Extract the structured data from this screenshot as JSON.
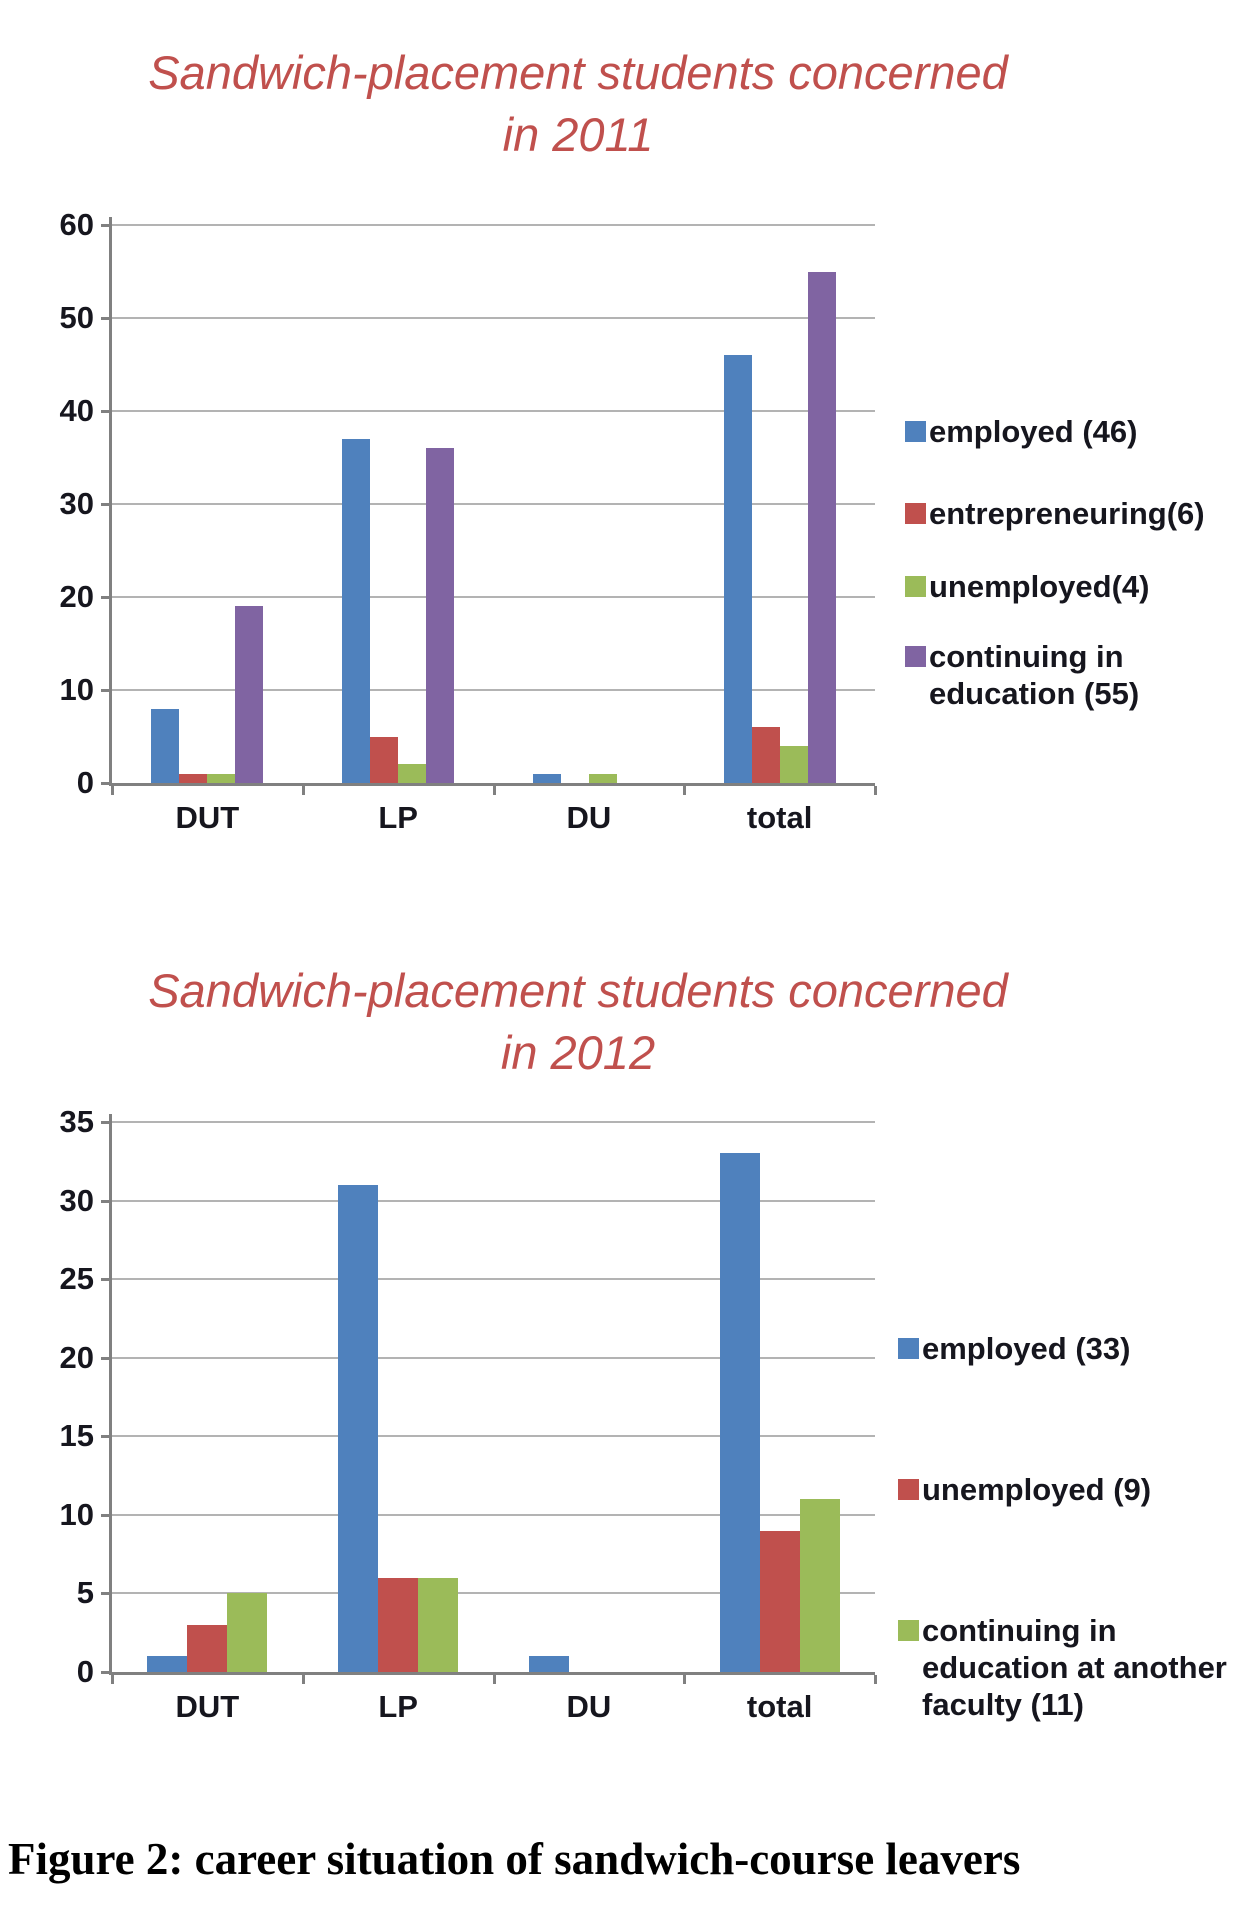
{
  "style": {
    "background": "#FFFFFF",
    "title_color": "#C0504D",
    "text_color": "#16161E",
    "axis_color": "#808080",
    "gridline_color": "#B3B3B3"
  },
  "chart_data": [
    {
      "type": "bar",
      "title": "Sandwich-placement students concerned in 2011",
      "title_lines": [
        "Sandwich-placement students concerned",
        "in 2011"
      ],
      "categories": [
        "DUT",
        "LP",
        "DU",
        "total"
      ],
      "series": [
        {
          "name": "employed (46)",
          "color": "#4F81BD",
          "values": [
            8,
            37,
            1,
            46
          ]
        },
        {
          "name": "entrepreneuring(6)",
          "color": "#C0504D",
          "values": [
            1,
            5,
            0,
            6
          ]
        },
        {
          "name": "unemployed(4)",
          "color": "#9BBB59",
          "values": [
            1,
            2,
            1,
            4
          ]
        },
        {
          "name": "continuing in education (55)",
          "color": "#8064A2",
          "values": [
            19,
            36,
            0,
            55
          ]
        }
      ],
      "xlabel": "",
      "ylabel": "",
      "ylim": [
        0,
        60
      ],
      "y_ticks": [
        0,
        10,
        20,
        30,
        40,
        50,
        60
      ],
      "grid": true,
      "legend_position": "right"
    },
    {
      "type": "bar",
      "title": "Sandwich-placement students concerned in 2012",
      "title_lines": [
        "Sandwich-placement students concerned",
        "in 2012"
      ],
      "categories": [
        "DUT",
        "LP",
        "DU",
        "total"
      ],
      "series": [
        {
          "name": "employed (33)",
          "color": "#4F81BD",
          "values": [
            1,
            31,
            1,
            33
          ]
        },
        {
          "name": "unemployed (9)",
          "color": "#C0504D",
          "values": [
            3,
            6,
            0,
            9
          ]
        },
        {
          "name": "continuing in education at another faculty (11)",
          "color": "#9BBB59",
          "values": [
            5,
            6,
            0,
            11
          ]
        }
      ],
      "xlabel": "",
      "ylabel": "",
      "ylim": [
        0,
        35
      ],
      "y_ticks": [
        0,
        5,
        10,
        15,
        20,
        25,
        30,
        35
      ],
      "grid": true,
      "legend_position": "right"
    }
  ],
  "caption": "Figure 2: career situation of sandwich-course leavers"
}
